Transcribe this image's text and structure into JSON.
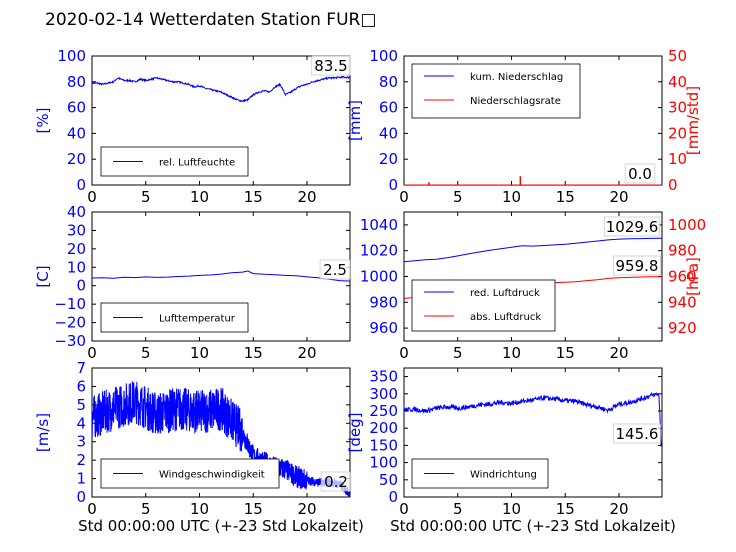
{
  "title": "2020-02-14 Wetterdaten Station FUR□",
  "colors": {
    "blue": "#0000ff",
    "red": "#ff0000",
    "axis": "#000000"
  },
  "chart_data": [
    {
      "id": "humidity",
      "type": "line",
      "ylabel": "[%]",
      "xlabel": "",
      "xlim": [
        0,
        24
      ],
      "ylim": [
        0,
        100
      ],
      "xticks": [
        "0",
        "5",
        "10",
        "15",
        "20"
      ],
      "yticks": [
        "0",
        "20",
        "40",
        "60",
        "80",
        "100"
      ],
      "legend": [
        "rel. Luftfeuchte"
      ],
      "legend_position": "lower-center",
      "annotation": "83.5",
      "series": [
        {
          "name": "rel. Luftfeuchte",
          "color": "blue",
          "x": [
            0,
            0.5,
            1,
            1.5,
            2,
            2.4,
            3,
            3.5,
            4,
            4.5,
            5,
            5.5,
            6,
            6.5,
            7,
            7.5,
            8,
            8.5,
            9,
            9.5,
            10,
            10.5,
            11,
            11.5,
            12,
            12.5,
            13,
            13.5,
            14,
            14.5,
            15,
            15.5,
            16,
            16.5,
            17,
            17.5,
            18,
            18.5,
            19,
            19.5,
            20,
            20.5,
            21,
            21.5,
            22,
            22.5,
            23,
            23.5,
            24
          ],
          "y": [
            79,
            79,
            78,
            79,
            80,
            83,
            81,
            81,
            80,
            82,
            81,
            82,
            83,
            82,
            81,
            80,
            80,
            79,
            78,
            76,
            77,
            75,
            74,
            73,
            72,
            70,
            68,
            66,
            65,
            66,
            70,
            72,
            73,
            72,
            76,
            78,
            70,
            72,
            75,
            77,
            78,
            80,
            81,
            82,
            83,
            83,
            83.5,
            83.5,
            83.5
          ]
        }
      ]
    },
    {
      "id": "precip",
      "type": "line",
      "ylabel": "[mm]",
      "y2label": "[mm/std]",
      "xlabel": "",
      "xlim": [
        0,
        24
      ],
      "ylim": [
        0,
        100
      ],
      "y2lim": [
        0,
        50
      ],
      "xticks": [
        "0",
        "5",
        "10",
        "15",
        "20"
      ],
      "yticks": [
        "0",
        "20",
        "40",
        "60",
        "80",
        "100"
      ],
      "y2ticks": [
        "0",
        "10",
        "20",
        "30",
        "40",
        "50"
      ],
      "legend": [
        "kum. Niederschlag",
        "Niederschlagsrate"
      ],
      "legend_position": "upper-left",
      "annotation": "0.0",
      "series": [
        {
          "name": "kum. Niederschlag",
          "color": "blue",
          "axis": "left",
          "x": [
            0,
            24
          ],
          "y": [
            0,
            0
          ]
        },
        {
          "name": "Niederschlagsrate",
          "color": "red",
          "axis": "right",
          "x": [
            0,
            2.3,
            2.3,
            2.35,
            2.35,
            10.8,
            10.8,
            10.85,
            10.85,
            24
          ],
          "y": [
            0,
            0,
            0.8,
            0.8,
            0,
            0,
            3.2,
            3.2,
            0,
            0
          ]
        }
      ]
    },
    {
      "id": "temperature",
      "type": "line",
      "ylabel": "[C]",
      "xlabel": "",
      "xlim": [
        0,
        24
      ],
      "ylim": [
        -30,
        40
      ],
      "xticks": [
        "0",
        "5",
        "10",
        "15",
        "20"
      ],
      "yticks": [
        "−30",
        "−20",
        "−10",
        "0",
        "10",
        "20",
        "30",
        "40"
      ],
      "legend": [
        "Lufttemperatur"
      ],
      "legend_position": "lower-center",
      "annotation": "2.5",
      "series": [
        {
          "name": "Lufttemperatur",
          "color": "blue",
          "x": [
            0,
            1,
            2,
            3,
            4,
            5,
            6,
            7,
            8,
            9,
            10,
            11,
            12,
            13,
            14,
            14.5,
            15,
            16,
            17,
            18,
            19,
            20,
            21,
            22,
            23,
            24
          ],
          "y": [
            4.2,
            4.3,
            4.1,
            4.6,
            4.4,
            4.8,
            4.5,
            4.7,
            5.0,
            5.2,
            5.6,
            5.8,
            6.3,
            7.0,
            7.4,
            8.0,
            6.6,
            6.2,
            6.0,
            5.6,
            5.4,
            4.8,
            4.3,
            3.6,
            2.8,
            2.5
          ]
        }
      ]
    },
    {
      "id": "pressure",
      "type": "line",
      "ylabel": "",
      "y2label": "[hPa]",
      "xlabel": "",
      "xlim": [
        0,
        24
      ],
      "ylim": [
        950,
        1050
      ],
      "y2lim": [
        910,
        1010
      ],
      "xticks": [
        "0",
        "5",
        "10",
        "15",
        "20"
      ],
      "yticks": [
        "960",
        "980",
        "1000",
        "1020",
        "1040"
      ],
      "y2ticks": [
        "920",
        "940",
        "960",
        "980",
        "1000"
      ],
      "legend": [
        "red. Luftdruck",
        "abs. Luftdruck"
      ],
      "legend_position": "lower-left",
      "annotations": [
        "1029.6",
        "959.8"
      ],
      "series": [
        {
          "name": "red. Luftdruck",
          "color": "blue",
          "axis": "left",
          "x": [
            0,
            1,
            2,
            3,
            4,
            5,
            6,
            7,
            8,
            9,
            10,
            11,
            12,
            13,
            14,
            15,
            16,
            17,
            18,
            19,
            20,
            21,
            22,
            23,
            24
          ],
          "y": [
            1011.5,
            1012.2,
            1013.0,
            1013.4,
            1014.5,
            1016.0,
            1017.5,
            1019.0,
            1020.3,
            1021.5,
            1022.6,
            1023.8,
            1023.6,
            1024.0,
            1024.5,
            1025.0,
            1025.8,
            1026.7,
            1027.5,
            1028.4,
            1029.0,
            1029.2,
            1029.4,
            1029.5,
            1029.6
          ]
        },
        {
          "name": "abs. Luftdruck",
          "color": "red",
          "axis": "right",
          "x": [
            0,
            1,
            2,
            3,
            4,
            5,
            6,
            7,
            8,
            9,
            10,
            11,
            12,
            13,
            14,
            15,
            16,
            17,
            18,
            19,
            20,
            21,
            22,
            23,
            24
          ],
          "y": [
            943.0,
            943.8,
            944.8,
            945.5,
            946.5,
            948.0,
            949.5,
            951.0,
            952.0,
            953.2,
            954.0,
            954.6,
            954.8,
            955.0,
            955.3,
            955.6,
            956.0,
            956.8,
            957.5,
            958.5,
            959.0,
            959.3,
            959.6,
            959.8,
            959.8
          ]
        }
      ]
    },
    {
      "id": "windspeed",
      "type": "line",
      "ylabel": "[m/s]",
      "xlabel": "Std 00:00:00 UTC (+-23 Std Lokalzeit)",
      "xlim": [
        0,
        24
      ],
      "ylim": [
        0,
        7
      ],
      "xticks": [
        "0",
        "5",
        "10",
        "15",
        "20"
      ],
      "yticks": [
        "0",
        "1",
        "2",
        "3",
        "4",
        "5",
        "6",
        "7"
      ],
      "legend": [
        "Windgeschwindigkeit"
      ],
      "legend_position": "lower-center",
      "annotation": "0.2",
      "series": [
        {
          "name": "Windgeschwindigkeit",
          "color": "blue",
          "x": [
            0,
            2,
            4,
            6,
            8,
            10,
            12,
            14,
            15,
            16,
            17,
            18,
            19,
            20,
            21,
            22,
            23,
            24
          ],
          "y": [
            4.3,
            4.8,
            5.2,
            4.5,
            4.8,
            4.6,
            4.8,
            3.5,
            2.2,
            1.9,
            1.6,
            1.5,
            1.1,
            0.9,
            0.8,
            0.8,
            0.7,
            0.2
          ]
        }
      ]
    },
    {
      "id": "winddir",
      "type": "line",
      "ylabel": "[deg]",
      "xlabel": "Std 00:00:00 UTC (+-23 Std Lokalzeit)",
      "xlim": [
        0,
        24
      ],
      "ylim": [
        0,
        375
      ],
      "xticks": [
        "0",
        "5",
        "10",
        "15",
        "20"
      ],
      "yticks": [
        "0",
        "50",
        "100",
        "150",
        "200",
        "250",
        "300",
        "350"
      ],
      "legend": [
        "Windrichtung"
      ],
      "legend_position": "lower-center",
      "annotation": "145.6",
      "series": [
        {
          "name": "Windrichtung",
          "color": "blue",
          "x": [
            0,
            1,
            2,
            3,
            4,
            5,
            6,
            7,
            8,
            9,
            10,
            11,
            12,
            13,
            14,
            15,
            16,
            17,
            18,
            19,
            20,
            21,
            22,
            23,
            23.7,
            23.8,
            23.9,
            24
          ],
          "y": [
            253,
            255,
            250,
            258,
            262,
            258,
            262,
            268,
            270,
            275,
            272,
            278,
            282,
            288,
            285,
            280,
            278,
            268,
            262,
            252,
            270,
            275,
            285,
            295,
            300,
            240,
            150,
            145.6
          ]
        }
      ]
    }
  ]
}
